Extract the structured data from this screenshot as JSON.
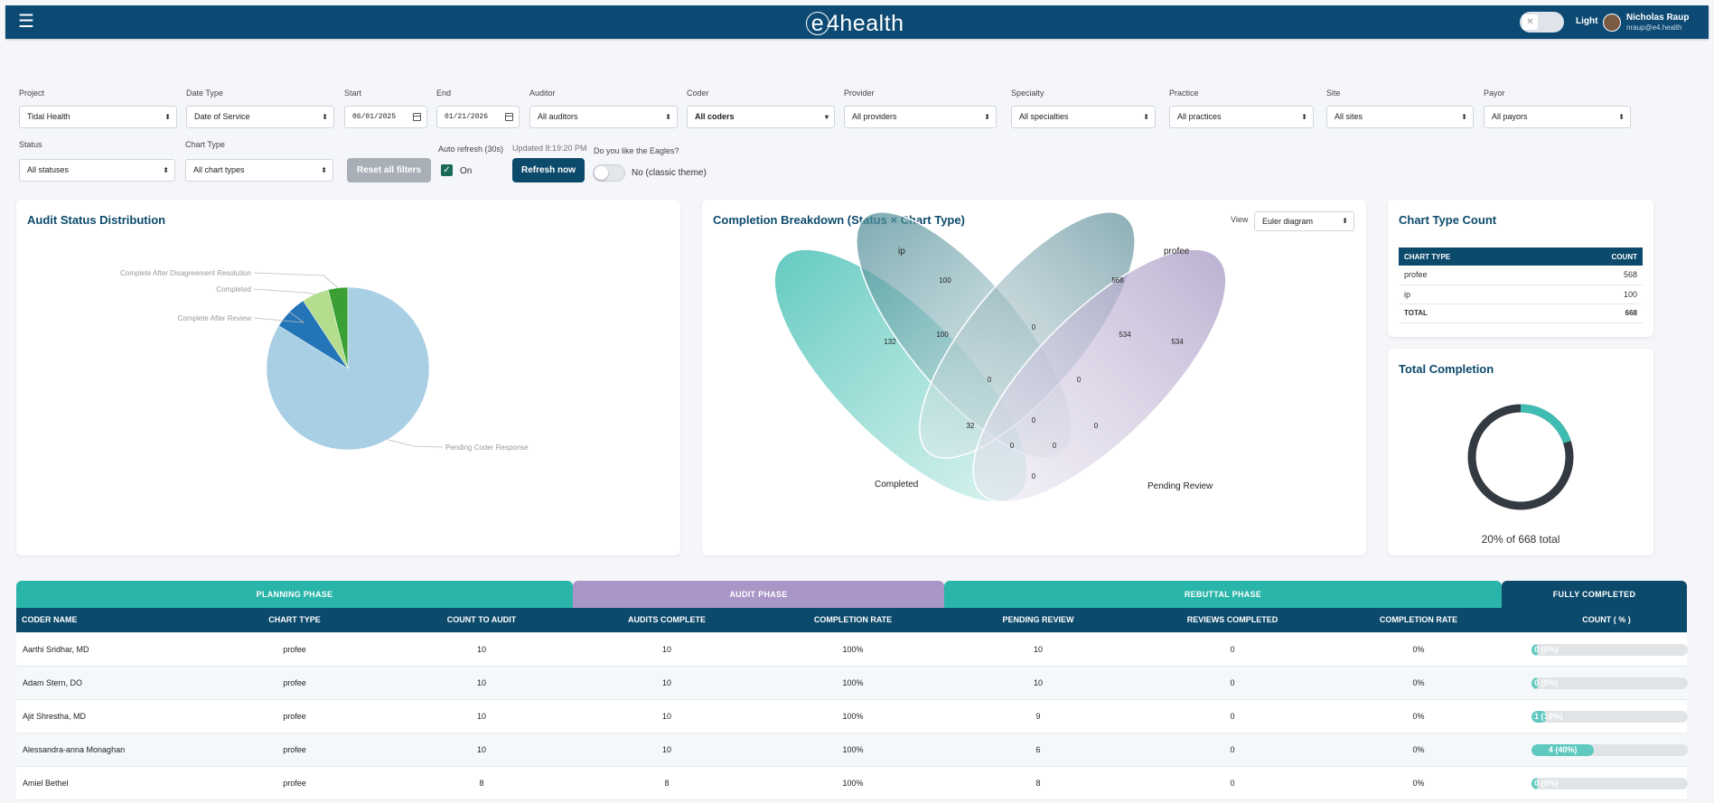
{
  "topbar": {
    "brand": "4health",
    "brand_e": "e",
    "theme_label": "Light",
    "user_name": "Nicholas Raup",
    "user_email": "nraup@e4.health"
  },
  "filters": {
    "project": {
      "label": "Project",
      "value": "Tidal Health"
    },
    "date_type": {
      "label": "Date Type",
      "value": "Date of Service"
    },
    "start": {
      "label": "Start",
      "value": "06/01/2025"
    },
    "end": {
      "label": "End",
      "value": "01/21/2026"
    },
    "auditor": {
      "label": "Auditor",
      "value": "All auditors"
    },
    "coder": {
      "label": "Coder",
      "value": "All coders"
    },
    "provider": {
      "label": "Provider",
      "value": "All providers"
    },
    "specialty": {
      "label": "Specialty",
      "value": "All specialties"
    },
    "practice": {
      "label": "Practice",
      "value": "All practices"
    },
    "site": {
      "label": "Site",
      "value": "All sites"
    },
    "payor": {
      "label": "Payor",
      "value": "All payors"
    },
    "status": {
      "label": "Status",
      "value": "All statuses"
    },
    "chart_type": {
      "label": "Chart Type",
      "value": "All chart types"
    }
  },
  "controls": {
    "reset_label": "Reset all filters",
    "auto_refresh_label": "Auto refresh (30s)",
    "auto_refresh_state": "On",
    "updated_text": "Updated 8:19:20 PM",
    "refresh_label": "Refresh now",
    "eagles_label": "Do you like the Eagles?",
    "eagles_state": "No (classic theme)"
  },
  "audit_status": {
    "title": "Audit Status Distribution",
    "chart_data": {
      "type": "pie",
      "slices": [
        {
          "label": "Pending Coder Response",
          "value": 560,
          "color": "#a8cfe3"
        },
        {
          "label": "Complete After Review",
          "value": 46,
          "color": "#2474b8"
        },
        {
          "label": "Completed",
          "value": 36,
          "color": "#b4dd8e"
        },
        {
          "label": "Complete After Disagreement Resolution",
          "value": 26,
          "color": "#3aa033"
        }
      ]
    }
  },
  "completion_breakdown": {
    "title": "Completion Breakdown (Status × Chart Type)",
    "view_label": "View",
    "view_value": "Euler diagram",
    "sets": {
      "ip": "ip",
      "profee": "profee",
      "completed": "Completed",
      "pending": "Pending Review"
    },
    "regions": {
      "ip_only": "100",
      "profee_only": "568",
      "completed_only": "132",
      "pending_only": "534",
      "ip_profee": "0",
      "ip_completed": "100",
      "profee_pending": "534",
      "completed_profee": "0",
      "ip_pending": "0",
      "ip_completed_pending": "32",
      "center": "0",
      "left_low": "0",
      "right_low": "0",
      "right_mid": "0",
      "completed_pending": "0"
    }
  },
  "chart_type_count": {
    "title": "Chart Type Count",
    "headers": [
      "CHART TYPE",
      "COUNT"
    ],
    "rows": [
      {
        "type": "profee",
        "count": "568"
      },
      {
        "type": "ip",
        "count": "100"
      }
    ],
    "total_label": "TOTAL",
    "total": "668"
  },
  "total_completion": {
    "title": "Total Completion",
    "caption": "20% of 668 total",
    "percent": 20
  },
  "phases": {
    "planning": "PLANNING PHASE",
    "audit": "AUDIT PHASE",
    "rebuttal": "REBUTTAL PHASE",
    "fully": "FULLY COMPLETED"
  },
  "table": {
    "columns": [
      "CODER NAME",
      "CHART TYPE",
      "COUNT TO AUDIT",
      "AUDITS COMPLETE",
      "COMPLETION RATE",
      "PENDING REVIEW",
      "REVIEWS COMPLETED",
      "COMPLETION RATE",
      "COUNT ( % )"
    ],
    "rows": [
      {
        "name": "Aarthi Sridhar, MD",
        "type": "profee",
        "to_audit": "10",
        "complete": "10",
        "rate": "100%",
        "pending": "10",
        "reviews": "0",
        "rate2": "0%",
        "count_label": "0 (0%)",
        "count_pct": 0
      },
      {
        "name": "Adam Stern, DO",
        "type": "profee",
        "to_audit": "10",
        "complete": "10",
        "rate": "100%",
        "pending": "10",
        "reviews": "0",
        "rate2": "0%",
        "count_label": "0 (0%)",
        "count_pct": 0
      },
      {
        "name": "Ajit Shrestha, MD",
        "type": "profee",
        "to_audit": "10",
        "complete": "10",
        "rate": "100%",
        "pending": "9",
        "reviews": "0",
        "rate2": "0%",
        "count_label": "1 (10%)",
        "count_pct": 10
      },
      {
        "name": "Alessandra-anna Monaghan",
        "type": "profee",
        "to_audit": "10",
        "complete": "10",
        "rate": "100%",
        "pending": "6",
        "reviews": "0",
        "rate2": "0%",
        "count_label": "4 (40%)",
        "count_pct": 40
      },
      {
        "name": "Amiel Bethel",
        "type": "profee",
        "to_audit": "8",
        "complete": "8",
        "rate": "100%",
        "pending": "8",
        "reviews": "0",
        "rate2": "0%",
        "count_label": "0 (0%)",
        "count_pct": 0
      }
    ]
  }
}
